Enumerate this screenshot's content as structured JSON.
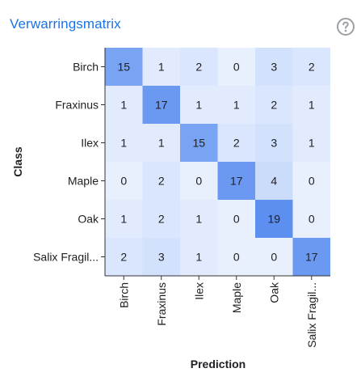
{
  "panel": {
    "title": "Verwarringsmatrix",
    "help_icon": "help-circle-icon"
  },
  "chart_data": {
    "type": "heatmap",
    "ylabel": "Class",
    "xlabel": "Prediction",
    "row_labels": [
      "Birch",
      "Fraxinus",
      "Ilex",
      "Maple",
      "Oak",
      "Salix Fragil..."
    ],
    "col_labels": [
      "Birch",
      "Fraxinus",
      "Ilex",
      "Maple",
      "Oak",
      "Salix Fragil..."
    ],
    "values": [
      [
        15,
        1,
        2,
        0,
        3,
        2
      ],
      [
        1,
        17,
        1,
        1,
        2,
        1
      ],
      [
        1,
        1,
        15,
        2,
        3,
        1
      ],
      [
        0,
        2,
        0,
        17,
        4,
        0
      ],
      [
        1,
        2,
        1,
        0,
        19,
        0
      ],
      [
        2,
        3,
        1,
        0,
        0,
        17
      ]
    ],
    "color_low": "#e8f0fe",
    "color_high": "#5c8ff0",
    "grid": false,
    "legend": "none"
  }
}
